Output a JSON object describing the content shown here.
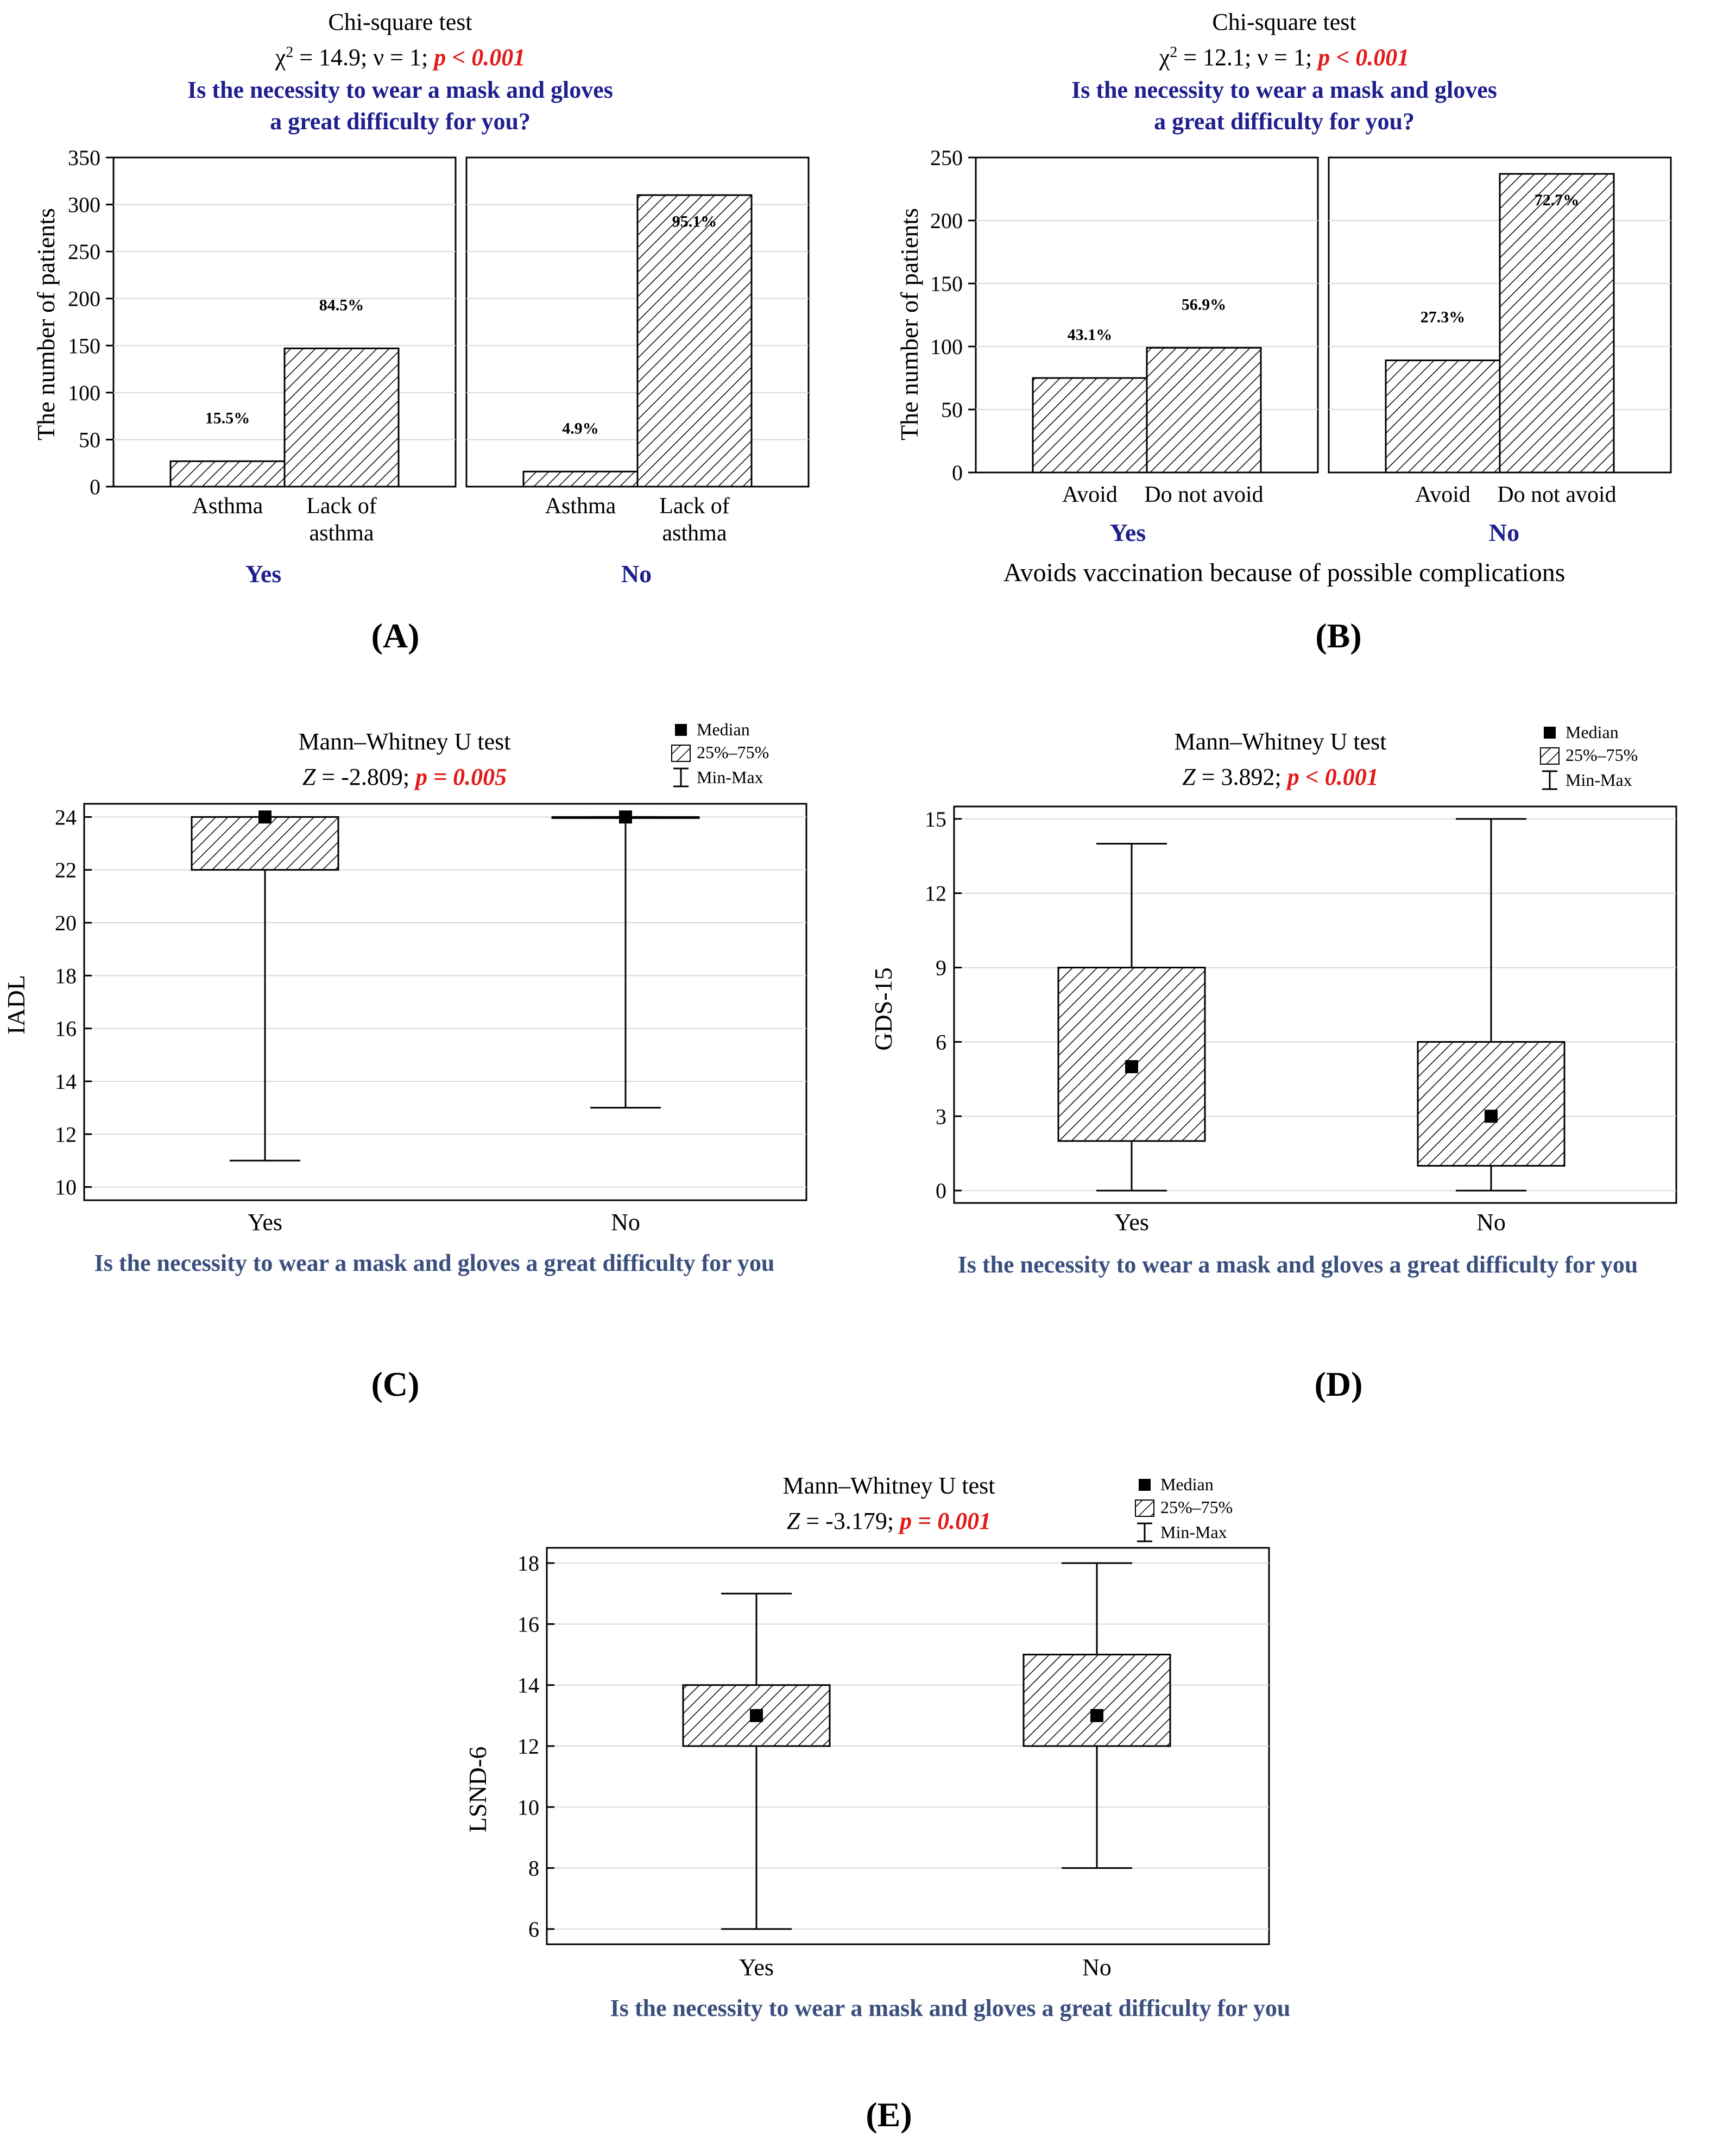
{
  "panel_labels": [
    "(A)",
    "(B)",
    "(C)",
    "(D)",
    "(E)"
  ],
  "legend": {
    "median": "Median",
    "iqr": "25%–75%",
    "range": "Min-Max"
  },
  "colors": {
    "question": "#1f1f8f",
    "xcaption": "#3b4f7f",
    "pvalue": "#e11a1a",
    "axis": "#000000"
  },
  "chart_data": [
    {
      "id": "A",
      "type": "bar",
      "title": "Chi-square test",
      "stat": "14.9",
      "df_text": "ν = 1;",
      "p_text": "p < 0.001",
      "question": [
        "Is the necessity to wear a mask and gloves",
        "a great difficulty for you?"
      ],
      "ylabel": "The number of patients",
      "ylim": [
        0,
        350
      ],
      "yticks": [
        0,
        50,
        100,
        150,
        200,
        250,
        300,
        350
      ],
      "groups": [
        {
          "name": "Yes",
          "bars": [
            {
              "category": [
                "Asthma"
              ],
              "value": 27,
              "label": "15.5%"
            },
            {
              "category": [
                "Lack of",
                "asthma"
              ],
              "value": 147,
              "label": "84.5%"
            }
          ]
        },
        {
          "name": "No",
          "bars": [
            {
              "category": [
                "Asthma"
              ],
              "value": 16,
              "label": "4.9%"
            },
            {
              "category": [
                "Lack of",
                "asthma"
              ],
              "value": 310,
              "label": "95.1%"
            }
          ]
        }
      ]
    },
    {
      "id": "B",
      "type": "bar",
      "title": "Chi-square test",
      "stat": "12.1",
      "df_text": "ν = 1;",
      "p_text": "p < 0.001",
      "question": [
        "Is the necessity to wear a mask and gloves",
        "a great difficulty for you?"
      ],
      "ylabel": "The number of patients",
      "ylim": [
        0,
        250
      ],
      "yticks": [
        0,
        50,
        100,
        150,
        200,
        250
      ],
      "xcaption": "Avoids vaccination because of possible complications",
      "groups": [
        {
          "name": "Yes",
          "bars": [
            {
              "category": [
                "Avoid"
              ],
              "value": 75,
              "label": "43.1%"
            },
            {
              "category": [
                "Do not avoid"
              ],
              "value": 99,
              "label": "56.9%"
            }
          ]
        },
        {
          "name": "No",
          "bars": [
            {
              "category": [
                "Avoid"
              ],
              "value": 89,
              "label": "27.3%"
            },
            {
              "category": [
                "Do not avoid"
              ],
              "value": 237,
              "label": "72.7%"
            }
          ]
        }
      ]
    },
    {
      "id": "C",
      "type": "box",
      "title": "Mann–Whitney U test",
      "z": "-2.809",
      "p_text": "p = 0.005",
      "ylabel": "IADL",
      "ylim": [
        9.5,
        24.5
      ],
      "yticks": [
        10,
        12,
        14,
        16,
        18,
        20,
        22,
        24
      ],
      "xlabel": "Is the necessity to wear a mask and gloves a great difficulty for you",
      "boxes": [
        {
          "name": "Yes",
          "min": 11,
          "q1": 22,
          "median": 24,
          "q3": 24,
          "max": 24
        },
        {
          "name": "No",
          "min": 13,
          "q1": 24,
          "median": 24,
          "q3": 24,
          "max": 24
        }
      ]
    },
    {
      "id": "D",
      "type": "box",
      "title": "Mann–Whitney U test",
      "z": "3.892",
      "p_text": "p < 0.001",
      "ylabel": "GDS-15",
      "ylim": [
        -0.5,
        15.5
      ],
      "yticks": [
        0,
        3,
        6,
        9,
        12,
        15
      ],
      "xlabel": "Is the necessity to wear a mask and gloves a great difficulty for you",
      "boxes": [
        {
          "name": "Yes",
          "min": 0,
          "q1": 2,
          "median": 5,
          "q3": 9,
          "max": 14
        },
        {
          "name": "No",
          "min": 0,
          "q1": 1,
          "median": 3,
          "q3": 6,
          "max": 15
        }
      ]
    },
    {
      "id": "E",
      "type": "box",
      "title": "Mann–Whitney U test",
      "z": "-3.179",
      "p_text": "p = 0.001",
      "ylabel": "LSND-6",
      "ylim": [
        5.5,
        18.5
      ],
      "yticks": [
        6,
        8,
        10,
        12,
        14,
        16,
        18
      ],
      "xlabel": "Is the necessity to wear a mask and gloves a great difficulty for you",
      "boxes": [
        {
          "name": "Yes",
          "min": 6,
          "q1": 12,
          "median": 13,
          "q3": 14,
          "max": 17
        },
        {
          "name": "No",
          "min": 8,
          "q1": 12,
          "median": 13,
          "q3": 15,
          "max": 18
        }
      ]
    }
  ]
}
